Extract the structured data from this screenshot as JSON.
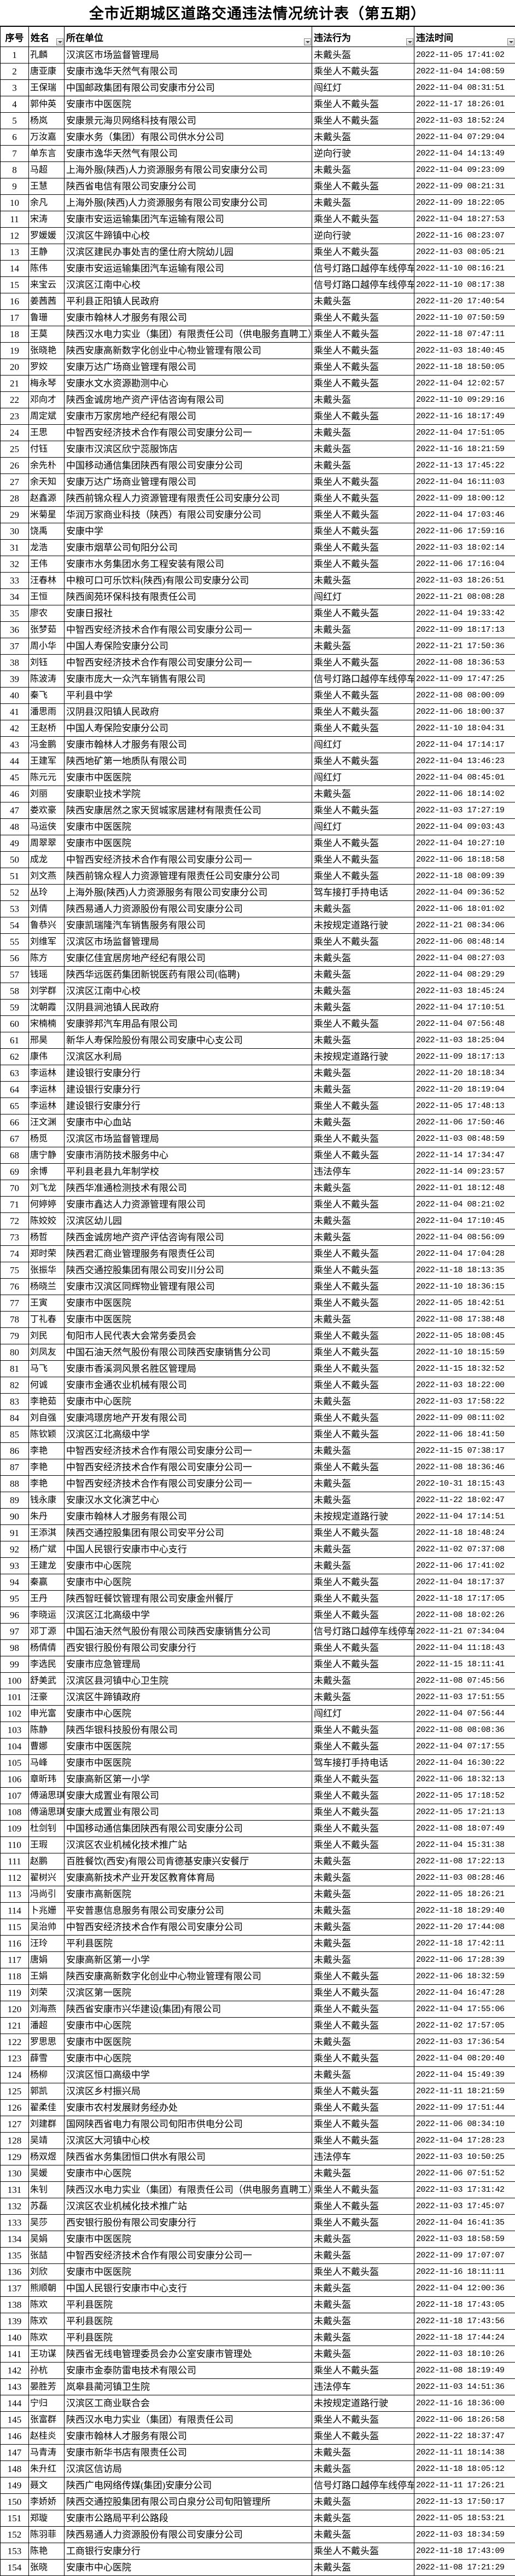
{
  "title": "全市近期城区道路交通违法情况统计表（第五期）",
  "headers": [
    "序号",
    "姓名",
    "所在单位",
    "违法行为",
    "违法时间"
  ],
  "filter_icon": "dropdown-arrow-icon",
  "rows": [
    [
      "1",
      "孔麟",
      "汉滨区市场监督管理局",
      "未戴头盔",
      "2022-11-05 17:41:02"
    ],
    [
      "2",
      "唐亚康",
      "安康市逸华天然气有限公司",
      "乘坐人不戴头盔",
      "2022-11-04 14:08:59"
    ],
    [
      "3",
      "王保瑞",
      "中国邮政集团有限公司安康市分公司",
      "闯红灯",
      "2022-11-04 08:31:51"
    ],
    [
      "4",
      "郭仲英",
      "安康市中医医院",
      "乘坐人不戴头盔",
      "2022-11-17 18:26:01"
    ],
    [
      "5",
      "杨岚",
      "安康景元海贝网络科技有限公司",
      "乘坐人不戴头盔",
      "2022-11-03 18:52:24"
    ],
    [
      "6",
      "万汝嘉",
      "安康水务（集团）有限公司供水分公司",
      "未戴头盔",
      "2022-11-04 07:29:04"
    ],
    [
      "7",
      "单东言",
      "安康市逸华天然气有限公司",
      "逆向行驶",
      "2022-11-04 14:13:49"
    ],
    [
      "8",
      "马超",
      "上海外服(陕西)人力资源服务有限公司安康分公司",
      "未戴头盔",
      "2022-11-04 09:23:09"
    ],
    [
      "9",
      "王慧",
      "陕西省电信有限公司安康分公司",
      "乘坐人不戴头盔",
      "2022-11-09 08:21:31"
    ],
    [
      "10",
      "余凡",
      "上海外服(陕西)人力资源服务有限公司安康分公司",
      "未戴头盔",
      "2022-11-09 18:22:05"
    ],
    [
      "11",
      "宋涛",
      "安康市安运运输集团汽车运输有限公司",
      "乘坐人不戴头盔",
      "2022-11-04 18:27:53"
    ],
    [
      "12",
      "罗媛媛",
      "汉滨区牛蹄镇中心校",
      "逆向行驶",
      "2022-11-16 08:23:07"
    ],
    [
      "13",
      "王静",
      "汉滨区建民办事处吉的堡仕府大院幼儿园",
      "乘坐人不戴头盔",
      "2022-11-03 08:05:21"
    ],
    [
      "14",
      "陈伟",
      "安康市安运运输集团汽车运输有限公司",
      "信号灯路口越停车线停车",
      "2022-11-10 08:16:21"
    ],
    [
      "15",
      "来宝云",
      "汉滨区江南中心校",
      "信号灯路口越停车线停车",
      "2022-11-10 08:17:38"
    ],
    [
      "16",
      "姜茜茜",
      "平利县正阳镇人民政府",
      "未戴头盔",
      "2022-11-20 17:40:54"
    ],
    [
      "17",
      "鲁珊",
      "安康市翰林人才服务有限公司",
      "乘坐人不戴头盔",
      "2022-11-10 07:50:59"
    ],
    [
      "18",
      "王莫",
      "陕西汉水电力实业（集团）有限责任公司（供电服务直聘工）",
      "乘坐人不戴头盔",
      "2022-11-18 07:47:11"
    ],
    [
      "19",
      "张晓艳",
      "陕西安康高新数字化创业中心物业管理有限公司",
      "乘坐人不戴头盔",
      "2022-11-03 18:40:45"
    ],
    [
      "20",
      "罗姣",
      "安康万达广场商业管理有限公司",
      "乘坐人不戴头盔",
      "2022-11-18 18:50:05"
    ],
    [
      "21",
      "梅永琴",
      "安康水文水资源勘测中心",
      "乘坐人不戴头盔",
      "2022-11-04 12:02:57"
    ],
    [
      "22",
      "邓向才",
      "陕西金诚房地产资产评估咨询有限公司",
      "未戴头盔",
      "2022-11-10 09:29:16"
    ],
    [
      "23",
      "周定斌",
      "安康市万家房地产经纪有限公司",
      "乘坐人不戴头盔",
      "2022-11-16 18:17:49"
    ],
    [
      "24",
      "王思",
      "中智西安经济技术合作有限公司安康分公司一",
      "未戴头盔",
      "2022-11-04 17:51:05"
    ],
    [
      "25",
      "付钰",
      "安康市汉滨区欣宁蕊服饰店",
      "未戴头盔",
      "2022-11-16 18:21:59"
    ],
    [
      "26",
      "余先朴",
      "中国移动通信集团陕西有限公司安康分公司",
      "未戴头盔",
      "2022-11-13 17:45:22"
    ],
    [
      "27",
      "余天知",
      "安康万达广场商业管理有限公司",
      "乘坐人不戴头盔",
      "2022-11-04 16:11:03"
    ],
    [
      "28",
      "赵鑫源",
      "陕西前锦众程人力资源管理有限责任公司安康分公司",
      "乘坐人不戴头盔",
      "2022-11-09 18:00:12"
    ],
    [
      "29",
      "米菊星",
      "华润万家商业科技（陕西）有限公司安康分公司",
      "乘坐人不戴头盔",
      "2022-11-04 17:03:46"
    ],
    [
      "30",
      "饶禹",
      "安康中学",
      "乘坐人不戴头盔",
      "2022-11-06 17:59:16"
    ],
    [
      "31",
      "龙浩",
      "安康市烟草公司旬阳分公司",
      "乘坐人不戴头盔",
      "2022-11-03 18:02:14"
    ],
    [
      "32",
      "王伟",
      "安康市水务集团水务工程安装有限公司",
      "乘坐人不戴头盔",
      "2022-11-06 17:16:04"
    ],
    [
      "33",
      "汪春林",
      "中粮可口可乐饮料(陕西)有限公司安康分公司",
      "未戴头盔",
      "2022-11-03 18:26:51"
    ],
    [
      "34",
      "王恒",
      "陕西阆苑环保科技有限责任公司",
      "闯红灯",
      "2022-11-21 08:08:28"
    ],
    [
      "35",
      "廖农",
      "安康日报社",
      "乘坐人不戴头盔",
      "2022-11-04 19:33:42"
    ],
    [
      "36",
      "张梦茹",
      "中智西安经济技术合作有限公司安康分公司一",
      "未戴头盔",
      "2022-11-09 18:17:13"
    ],
    [
      "37",
      "周小华",
      "中国人寿保险安康分公司",
      "未戴头盔",
      "2022-11-21 17:50:36"
    ],
    [
      "38",
      "刘钰",
      "中智西安经济技术合作有限公司安康分公司一",
      "乘坐人不戴头盔",
      "2022-11-08 18:36:53"
    ],
    [
      "39",
      "陈波涛",
      "安康市庞大一众汽车销售有限公司",
      "信号灯路口越停车线停车",
      "2022-11-09 17:47:25"
    ],
    [
      "40",
      "秦飞",
      "平利县中学",
      "乘坐人不戴头盔",
      "2022-11-08 08:00:09"
    ],
    [
      "41",
      "潘思雨",
      "汉阴县汉阳镇人民政府",
      "乘坐人不戴头盔",
      "2022-11-06 18:00:37"
    ],
    [
      "42",
      "王赵桥",
      "中国人寿保险安康分公司",
      "乘坐人不戴头盔",
      "2022-11-10 18:04:31"
    ],
    [
      "43",
      "冯金鹏",
      "安康市翰林人才服务有限公司",
      "闯红灯",
      "2022-11-04 17:14:17"
    ],
    [
      "44",
      "王建军",
      "陕西地矿第一地质队有限公司",
      "乘坐人不戴头盔",
      "2022-11-04 13:46:23"
    ],
    [
      "45",
      "陈元元",
      "安康市中医医院",
      "闯红灯",
      "2022-11-04 08:45:01"
    ],
    [
      "46",
      "刘丽",
      "安康职业技术学院",
      "未戴头盔",
      "2022-11-06 18:14:02"
    ],
    [
      "47",
      "娄欢豪",
      "陕西安康居然之家天贸城家居建材有限责任公司",
      "乘坐人不戴头盔",
      "2022-11-03 17:27:19"
    ],
    [
      "48",
      "马运侠",
      "安康市中医医院",
      "闯红灯",
      "2022-11-04 09:03:43"
    ],
    [
      "49",
      "周翠翠",
      "安康市中医医院",
      "乘坐人不戴头盔",
      "2022-11-04 10:27:10"
    ],
    [
      "50",
      "成龙",
      "中智西安经济技术合作有限公司安康分公司一",
      "乘坐人不戴头盔",
      "2022-11-06 18:18:58"
    ],
    [
      "51",
      "刘文燕",
      "陕西前锦众程人力资源管理有限责任公司安康分公司",
      "乘坐人不戴头盔",
      "2022-11-18 08:09:39"
    ],
    [
      "52",
      "丛玲",
      "上海外服(陕西)人力资源服务有限公司安康分公司",
      "驾车接打手持电话",
      "2022-11-04 09:36:52"
    ],
    [
      "53",
      "刘倩",
      "陕西易通人力资源股份有限公司安康分公司",
      "未戴头盔",
      "2022-11-06 18:01:02"
    ],
    [
      "54",
      "鲁恭兴",
      "安康凯瑞隆汽车销售服务有限公司",
      "未按规定道路行驶",
      "2022-11-21 08:34:06"
    ],
    [
      "55",
      "刘维军",
      "汉滨区市场监督管理局",
      "乘坐人不戴头盔",
      "2022-11-06 08:48:14"
    ],
    [
      "56",
      "陈方",
      "安康亿佳宜居房地产经纪有限公司",
      "未戴头盔",
      "2022-11-04 08:27:03"
    ],
    [
      "57",
      "钱瑶",
      "陕西华远医药集团新锐医药有限公司(临聘)",
      "未戴头盔",
      "2022-11-04 08:29:29"
    ],
    [
      "58",
      "刘学群",
      "汉滨区江南中心校",
      "未戴头盔",
      "2022-11-03 18:45:24"
    ],
    [
      "59",
      "沈朝霞",
      "汉阴县涧池镇人民政府",
      "未戴头盔",
      "2022-11-04 17:10:51"
    ],
    [
      "60",
      "宋楠楠",
      "安康骅邦汽车用品有限公司",
      "乘坐人不戴头盔",
      "2022-11-04 07:56:48"
    ],
    [
      "61",
      "邢昊",
      "新华人寿保险股份有限公司安康中心支公司",
      "未戴头盔",
      "2022-11-03 18:25:04"
    ],
    [
      "62",
      "康伟",
      "汉滨区水利局",
      "未按规定道路行驶",
      "2022-11-09 18:17:13"
    ],
    [
      "63",
      "李运林",
      "建设银行安康分行",
      "未戴头盔",
      "2022-11-20 18:18:34"
    ],
    [
      "64",
      "李运林",
      "建设银行安康分行",
      "未戴头盔",
      "2022-11-20 18:19:04"
    ],
    [
      "65",
      "李运林",
      "建设银行安康分行",
      "乘坐人不戴头盔",
      "2022-11-05 17:48:13"
    ],
    [
      "66",
      "汪文渊",
      "安康市中心血站",
      "未戴头盔",
      "2022-11-06 17:50:46"
    ],
    [
      "67",
      "杨觅",
      "汉滨区市场监督管理局",
      "乘坐人不戴头盔",
      "2022-11-03 08:48:59"
    ],
    [
      "68",
      "唐宁静",
      "安康市消防技术服务中心",
      "乘坐人不戴头盔",
      "2022-11-14 17:34:47"
    ],
    [
      "69",
      "余博",
      "平利县老县九年制学校",
      "违法停车",
      "2022-11-14 09:23:57"
    ],
    [
      "70",
      "刘飞龙",
      "陕西华准通检测技术有限公司",
      "未戴头盔",
      "2022-11-01 18:12:48"
    ],
    [
      "71",
      "何婷婷",
      "安康市鑫达人力资源管理有限公司",
      "乘坐人不戴头盔",
      "2022-11-04 08:21:02"
    ],
    [
      "72",
      "陈姣姣",
      "汉滨区幼儿园",
      "未戴头盔",
      "2022-11-04 17:10:45"
    ],
    [
      "73",
      "杨哲",
      "陕西金诚房地产资产评估咨询有限公司",
      "未戴头盔",
      "2022-11-04 08:56:09"
    ],
    [
      "74",
      "郑时荣",
      "陕西君汇商业管理服务有限责任公司",
      "乘坐人不戴头盔",
      "2022-11-04 17:04:28"
    ],
    [
      "75",
      "张振华",
      "陕西交通控股集团有限公司安川分公司",
      "乘坐人不戴头盔",
      "2022-11-18 18:13:35"
    ],
    [
      "76",
      "杨晓兰",
      "安康市汉滨区同辉物业管理有限公司",
      "乘坐人不戴头盔",
      "2022-11-10 18:36:15"
    ],
    [
      "77",
      "王寅",
      "安康市中医医院",
      "乘坐人不戴头盔",
      "2022-11-05 18:42:51"
    ],
    [
      "78",
      "丁礼春",
      "安康市中医医院",
      "未戴头盔",
      "2022-11-08 17:38:48"
    ],
    [
      "79",
      "刘民",
      "旬阳市人民代表大会常务委员会",
      "乘坐人不戴头盔",
      "2022-11-05 18:08:45"
    ],
    [
      "80",
      "刘凤友",
      "中国石油天然气股份有限公司陕西安康销售分公司",
      "乘坐人不戴头盔",
      "2022-11-10 18:15:59"
    ],
    [
      "81",
      "马飞",
      "安康市香溪洞风景名胜区管理局",
      "乘坐人不戴头盔",
      "2022-11-15 18:32:52"
    ],
    [
      "82",
      "何诚",
      "安康市金通农业机械有限公司",
      "乘坐人不戴头盔",
      "2022-11-03 18:22:00"
    ],
    [
      "83",
      "李艳茹",
      "安康市中心医院",
      "未戴头盔",
      "2022-11-03 17:58:22"
    ],
    [
      "84",
      "刘自强",
      "安康鸿璟房地产开发有限公司",
      "乘坐人不戴头盔",
      "2022-11-09 08:11:02"
    ],
    [
      "85",
      "陈钦颖",
      "汉滨区江北高级中学",
      "乘坐人不戴头盔",
      "2022-11-06 18:41:50"
    ],
    [
      "86",
      "李艳",
      "中智西安经济技术合作有限公司安康分公司一",
      "未戴头盔",
      "2022-11-15 07:38:17"
    ],
    [
      "87",
      "李艳",
      "中智西安经济技术合作有限公司安康分公司一",
      "乘坐人不戴头盔",
      "2022-11-08 18:36:46"
    ],
    [
      "88",
      "李艳",
      "中智西安经济技术合作有限公司安康分公司一",
      "未戴头盔",
      "2022-10-31 18:15:43"
    ],
    [
      "89",
      "钱永康",
      "安康汉水文化演艺中心",
      "未戴头盔",
      "2022-11-22 18:02:47"
    ],
    [
      "90",
      "朱丹",
      "安康市翰林人才服务有限公司",
      "未按规定道路行驶",
      "2022-11-04 17:14:51"
    ],
    [
      "91",
      "王添淇",
      "陕西交通控股集团有限公司安平分公司",
      "乘坐人不戴头盔",
      "2022-11-18 18:48:24"
    ],
    [
      "92",
      "杨广斌",
      "中国人民银行安康市中心支行",
      "未戴头盔",
      "2022-11-02 07:37:08"
    ],
    [
      "93",
      "王建龙",
      "安康市中心医院",
      "未戴头盔",
      "2022-11-06 17:41:02"
    ],
    [
      "94",
      "秦赢",
      "安康市中心医院",
      "乘坐人不戴头盔",
      "2022-11-04 18:17:37"
    ],
    [
      "95",
      "王丹",
      "陕西智旺餐饮管理有限公司安康金州餐厅",
      "乘坐人不戴头盔",
      "2022-11-18 17:17:05"
    ],
    [
      "96",
      "李晓运",
      "汉滨区江北高级中学",
      "乘坐人不戴头盔",
      "2022-11-08 18:02:26"
    ],
    [
      "97",
      "邓丁源",
      "中国石油天然气股份有限公司陕西安康销售分公司",
      "信号灯路口越停车线停车",
      "2022-11-21 07:34:04"
    ],
    [
      "98",
      "杨倩倩",
      "西安银行股份有限公司安康分行",
      "乘坐人不戴头盔",
      "2022-11-04 11:18:43"
    ],
    [
      "99",
      "李选民",
      "安康市应急管理局",
      "乘坐人不戴头盔",
      "2022-11-15 18:11:41"
    ],
    [
      "100",
      "舒美武",
      "汉滨区县河镇中心卫生院",
      "未戴头盔",
      "2022-11-08 07:45:56"
    ],
    [
      "101",
      "汪豪",
      "汉滨区牛蹄镇政府",
      "未戴头盔",
      "2022-11-03 17:51:55"
    ],
    [
      "102",
      "申光富",
      "安康市中心医院",
      "闯红灯",
      "2022-11-04 07:56:44"
    ],
    [
      "103",
      "陈静",
      "陕西华银科技股份有限公司",
      "乘坐人不戴头盔",
      "2022-11-08 08:08:36"
    ],
    [
      "104",
      "曹娜",
      "安康市中医医院",
      "乘坐人不戴头盔",
      "2022-11-04 07:17:55"
    ],
    [
      "105",
      "马峰",
      "安康市中医医院",
      "驾车接打手持电话",
      "2022-11-04 16:30:22"
    ],
    [
      "106",
      "章昕玮",
      "安康高新区第一小学",
      "乘坐人不戴头盔",
      "2022-11-06 18:32:13"
    ],
    [
      "107",
      "傅涵思琪",
      "安康大成置业有限公司",
      "乘坐人不戴头盔",
      "2022-11-05 17:18:52"
    ],
    [
      "108",
      "傅涵思琪",
      "安康大成置业有限公司",
      "乘坐人不戴头盔",
      "2022-11-05 17:21:13"
    ],
    [
      "109",
      "杜剑钊",
      "中国移动通信集团陕西有限公司安康分公司",
      "乘坐人不戴头盔",
      "2022-11-08 18:07:49"
    ],
    [
      "110",
      "王瑕",
      "汉滨区农业机械化技术推广站",
      "乘坐人不戴头盔",
      "2022-11-04 15:31:38"
    ],
    [
      "111",
      "赵鹏",
      "百胜餐饮(西安)有限公司肯德基安康兴安餐厅",
      "未戴头盔",
      "2022-11-08 17:22:13"
    ],
    [
      "112",
      "翟树兴",
      "安康高新技术产业开发区教育体育局",
      "未戴头盔",
      "2022-11-03 08:28:46"
    ],
    [
      "113",
      "冯尚引",
      "安康市高新医院",
      "未戴头盔",
      "2022-11-05 18:26:21"
    ],
    [
      "114",
      "卜兆姗",
      "平安普惠信息服务有限公司安康分公司",
      "未戴头盔",
      "2022-11-18 18:29:40"
    ],
    [
      "115",
      "吴治帅",
      "中智西安经济技术合作有限公司安康分公司",
      "未戴头盔",
      "2022-11-20 17:44:08"
    ],
    [
      "116",
      "汪玲",
      "平利县医院",
      "未戴头盔",
      "2022-11-18 17:42:11"
    ],
    [
      "117",
      "唐娟",
      "安康高新区第一小学",
      "未戴头盔",
      "2022-11-06 17:28:39"
    ],
    [
      "118",
      "王娟",
      "陕西安康高新数字化创业中心物业管理有限公司",
      "乘坐人不戴头盔",
      "2022-11-06 18:32:59"
    ],
    [
      "119",
      "刘荣",
      "汉滨区第一医院",
      "乘坐人不戴头盔",
      "2022-11-04 16:47:28"
    ],
    [
      "120",
      "刘海燕",
      "陕西省安康市兴华建设(集团)有限公司",
      "乘坐人不戴头盔",
      "2022-11-04 17:55:06"
    ],
    [
      "121",
      "潘超",
      "安康市中心医院",
      "乘坐人不戴头盔",
      "2022-11-02 17:57:05"
    ],
    [
      "122",
      "罗思思",
      "安康市中医医院",
      "未戴头盔",
      "2022-11-03 17:36:54"
    ],
    [
      "123",
      "薛雪",
      "安康市中心医院",
      "乘坐人不戴头盔",
      "2022-11-04 08:20:40"
    ],
    [
      "124",
      "杨柳",
      "汉滨区恒口高级中学",
      "未戴头盔",
      "2022-11-04 15:49:39"
    ],
    [
      "125",
      "郭凯",
      "汉滨区乡村振兴局",
      "乘坐人不戴头盔",
      "2022-11-11 18:21:59"
    ],
    [
      "126",
      "翟柔佳",
      "安康市农村发展财务经办处",
      "乘坐人不戴头盔",
      "2022-11-09 17:51:44"
    ],
    [
      "127",
      "刘建群",
      "国网陕西省电力有限公司旬阳市供电分公司",
      "乘坐人不戴头盔",
      "2022-11-06 08:34:10"
    ],
    [
      "128",
      "吴靖",
      "汉滨区大河镇中心校",
      "乘坐人不戴头盔",
      "2022-11-04 17:28:23"
    ],
    [
      "129",
      "杨双煜",
      "陕西省水务集团恒口供水有限公司",
      "违法停车",
      "2022-11-03 10:50:25"
    ],
    [
      "130",
      "吴媛",
      "安康市中心医院",
      "未戴头盔",
      "2022-11-06 07:51:52"
    ],
    [
      "131",
      "朱钊",
      "陕西汉水电力实业（集团）有限责任公司（供电服务直聘工）",
      "乘坐人不戴头盔",
      "2022-11-03 17:31:42"
    ],
    [
      "132",
      "苏磊",
      "汉滨区农业机械化技术推广站",
      "乘坐人不戴头盔",
      "2022-11-03 17:45:07"
    ],
    [
      "133",
      "吴莎",
      "西安银行股份有限公司安康分行",
      "乘坐人不戴头盔",
      "2022-11-04 16:41:35"
    ],
    [
      "134",
      "吴娟",
      "安康市中医医院",
      "未戴头盔",
      "2022-11-03 18:58:59"
    ],
    [
      "135",
      "张喆",
      "中智西安经济技术合作有限公司安康分公司一",
      "未戴头盔",
      "2022-11-09 17:07:07"
    ],
    [
      "136",
      "刘欣",
      "安康市中医医院",
      "乘坐人不戴头盔",
      "2022-11-16 18:11:11"
    ],
    [
      "137",
      "熊顺朝",
      "中国人民银行安康市中心支行",
      "未戴头盔",
      "2022-11-04 12:00:36"
    ],
    [
      "138",
      "陈欢",
      "平利县医院",
      "未戴头盔",
      "2022-11-18 17:43:05"
    ],
    [
      "139",
      "陈欢",
      "平利县医院",
      "未戴头盔",
      "2022-11-18 17:43:56"
    ],
    [
      "140",
      "陈欢",
      "平利县医院",
      "未戴头盔",
      "2022-11-18 17:44:24"
    ],
    [
      "141",
      "王功谋",
      "陕西省无线电管理委员会办公室安康市管理处",
      "未戴头盔",
      "2022-11-03 18:10:26"
    ],
    [
      "142",
      "孙杭",
      "安康市金泰防雷电技术有限公司",
      "乘坐人不戴头盔",
      "2022-11-08 18:19:49"
    ],
    [
      "143",
      "晏胜芳",
      "岚皋县蔺河镇卫生院",
      "违法停车",
      "2022-11-03 14:51:36"
    ],
    [
      "144",
      "宁归",
      "汉滨区工商业联合会",
      "未按规定道路行驶",
      "2022-11-16 18:36:00"
    ],
    [
      "145",
      "张富群",
      "陕西汉水电力实业（集团）有限责任公司",
      "乘坐人不戴头盔",
      "2022-11-06 18:26:58"
    ],
    [
      "146",
      "赵桂炎",
      "安康市翰林人才服务有限公司",
      "乘坐人不戴头盔",
      "2022-11-22 18:37:47"
    ],
    [
      "147",
      "马青涛",
      "安康市新华书店有限责任公司",
      "未戴头盔",
      "2022-11-11 18:14:38"
    ],
    [
      "148",
      "朱升红",
      "汉滨区信访局",
      "未戴头盔",
      "2022-11-18 18:05:12"
    ],
    [
      "149",
      "聂文",
      "陕西广电网络传媒(集团)安康分公司",
      "信号灯路口越停车线停车",
      "2022-11-11 17:26:21"
    ],
    [
      "150",
      "李娇娇",
      "陕西交通控股集团有限公司白泉分公司旬阳管理所",
      "未戴头盔",
      "2022-11-13 17:50:17"
    ],
    [
      "151",
      "郑璇",
      "安康市公路局平利公路段",
      "未戴头盔",
      "2022-11-05 18:53:21"
    ],
    [
      "152",
      "陈羽菲",
      "陕西易通人力资源股份有限公司安康分公司",
      "未戴头盔",
      "2022-11-03 18:34:59"
    ],
    [
      "153",
      "陈艳",
      "工商银行安康分行",
      "乘坐人不戴头盔",
      "2022-11-18 17:43:09"
    ],
    [
      "154",
      "张晓",
      "安康市中心医院",
      "未戴头盔",
      "2022-11-08 17:21:29"
    ]
  ]
}
